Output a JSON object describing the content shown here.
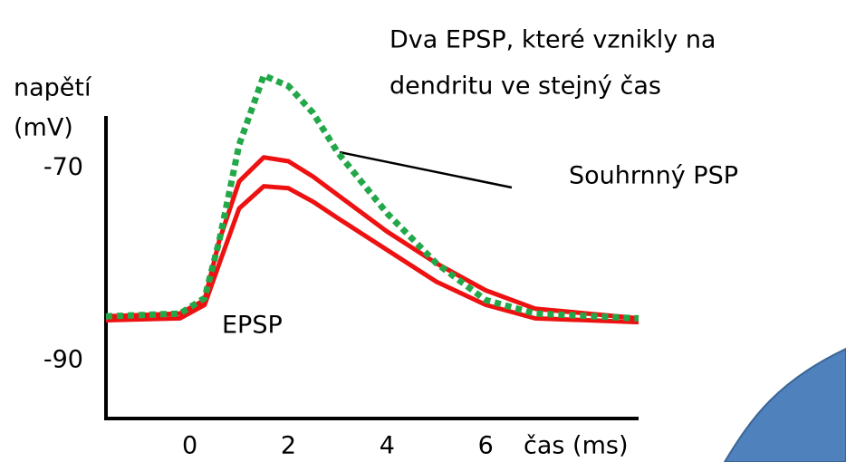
{
  "chart_data": {
    "type": "line",
    "title": [
      "Dva EPSP, které vznikly na",
      "dendritu ve stejný čas"
    ],
    "y_label": [
      "napětí",
      "(mV)"
    ],
    "x_label": "čas (ms)",
    "annotations": [
      "EPSP",
      "Souhrnný PSP"
    ],
    "x": [
      -1.7,
      -0.2,
      0.3,
      0.6,
      1.0,
      1.5,
      2.0,
      2.5,
      3.0,
      4.0,
      5.0,
      6.0,
      7.0,
      9.1
    ],
    "series": [
      {
        "color": "#ee1111",
        "style": "solid",
        "values": [
          -85.4,
          -85.1,
          -83.7,
          -77.5,
          -71.4,
          -68.9,
          -69.3,
          -70.9,
          -72.8,
          -76.6,
          -79.9,
          -82.7,
          -84.6,
          -85.6
        ]
      },
      {
        "color": "#ee1111",
        "style": "solid",
        "values": [
          -85.8,
          -85.6,
          -84.2,
          -79.9,
          -74.2,
          -71.9,
          -72.1,
          -73.5,
          -75.2,
          -78.5,
          -81.8,
          -84.2,
          -85.6,
          -86.0
        ]
      },
      {
        "color": "#22a848",
        "style": "dotted",
        "values": [
          -85.4,
          -85.1,
          -83.5,
          -77.5,
          -67.6,
          -60.4,
          -61.5,
          -64.3,
          -68.4,
          -74.7,
          -79.9,
          -83.7,
          -85.1,
          -85.6
        ]
      }
    ],
    "xlim": [
      -1.7,
      9.1
    ],
    "ylim": [
      -96,
      -64.6
    ],
    "xticks": [
      0,
      2,
      4,
      6
    ],
    "yticks": [
      -70,
      -90
    ],
    "grid": false
  }
}
